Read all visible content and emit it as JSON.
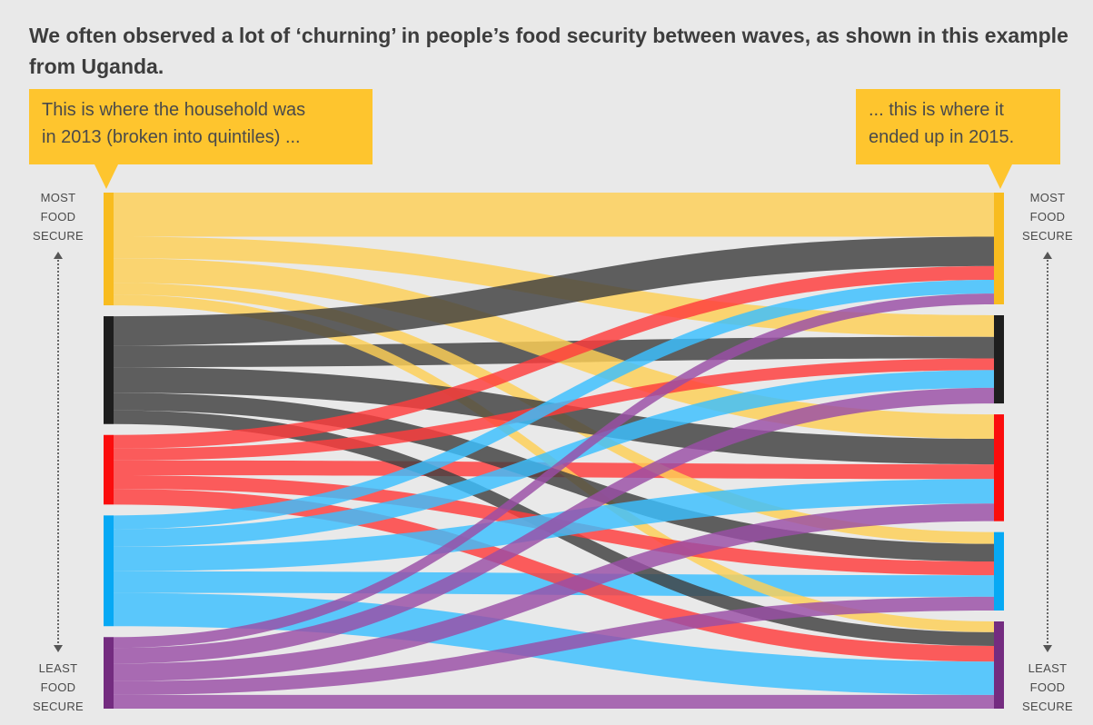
{
  "title": "We often observed a lot of ‘churning’ in people’s food security between waves, as shown in this example from Uganda.",
  "callouts": {
    "left": [
      "This is where the household was",
      "in 2013 (broken into quintiles) ..."
    ],
    "right": [
      "... this is where it",
      "ended up in 2015."
    ]
  },
  "axis": {
    "top": [
      "MOST",
      "FOOD",
      "SECURE"
    ],
    "bottom": [
      "LEAST",
      "FOOD",
      "SECURE"
    ]
  },
  "colors": {
    "background": "#e9e9e9",
    "callout": "#fec52e"
  },
  "quintiles": [
    {
      "id": "q1",
      "bar": "#f8bc1f",
      "flow": "#fecf55"
    },
    {
      "id": "q2",
      "bar": "#1e1e1e",
      "flow": "#3f3f3f"
    },
    {
      "id": "q3",
      "bar": "#fb0d0d",
      "flow": "#ff3c3c"
    },
    {
      "id": "q4",
      "bar": "#07a9f4",
      "flow": "#3ac0ff"
    },
    {
      "id": "q5",
      "bar": "#742c80",
      "flow": "#9a4ea6"
    }
  ],
  "flows": [
    {
      "from": "q1",
      "to": "q1",
      "value": 45
    },
    {
      "from": "q1",
      "to": "q2",
      "value": 22
    },
    {
      "from": "q1",
      "to": "q3",
      "value": 25
    },
    {
      "from": "q1",
      "to": "q4",
      "value": 12
    },
    {
      "from": "q1",
      "to": "q5",
      "value": 11
    },
    {
      "from": "q2",
      "to": "q1",
      "value": 30
    },
    {
      "from": "q2",
      "to": "q2",
      "value": 22
    },
    {
      "from": "q2",
      "to": "q3",
      "value": 26
    },
    {
      "from": "q2",
      "to": "q4",
      "value": 18
    },
    {
      "from": "q2",
      "to": "q5",
      "value": 14
    },
    {
      "from": "q3",
      "to": "q1",
      "value": 14
    },
    {
      "from": "q3",
      "to": "q2",
      "value": 12
    },
    {
      "from": "q3",
      "to": "q3",
      "value": 15
    },
    {
      "from": "q3",
      "to": "q4",
      "value": 14
    },
    {
      "from": "q3",
      "to": "q5",
      "value": 16
    },
    {
      "from": "q4",
      "to": "q1",
      "value": 14
    },
    {
      "from": "q4",
      "to": "q2",
      "value": 18
    },
    {
      "from": "q4",
      "to": "q3",
      "value": 25
    },
    {
      "from": "q4",
      "to": "q4",
      "value": 22
    },
    {
      "from": "q4",
      "to": "q5",
      "value": 34
    },
    {
      "from": "q5",
      "to": "q1",
      "value": 11
    },
    {
      "from": "q5",
      "to": "q2",
      "value": 16
    },
    {
      "from": "q5",
      "to": "q3",
      "value": 18
    },
    {
      "from": "q5",
      "to": "q4",
      "value": 14
    },
    {
      "from": "q5",
      "to": "q5",
      "value": 14
    }
  ]
}
